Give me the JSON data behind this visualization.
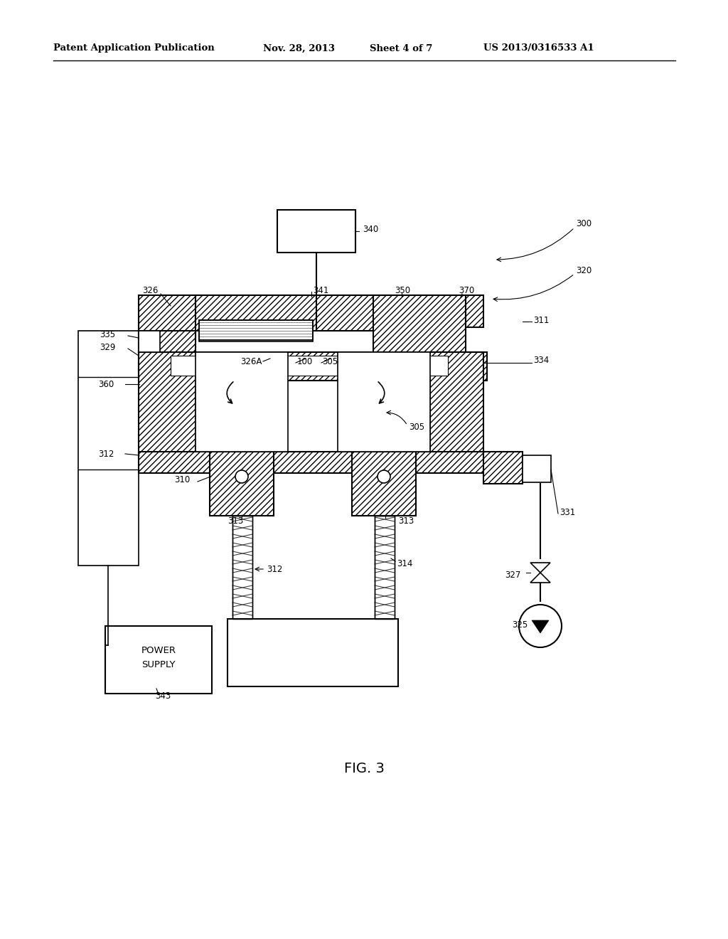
{
  "bg_color": "#ffffff",
  "header_text": "Patent Application Publication",
  "header_date": "Nov. 28, 2013",
  "header_sheet": "Sheet 4 of 7",
  "header_patent": "US 2013/0316533 A1",
  "figure_label": "FIG. 3",
  "fig_width": 10.24,
  "fig_height": 13.2,
  "dpi": 100
}
